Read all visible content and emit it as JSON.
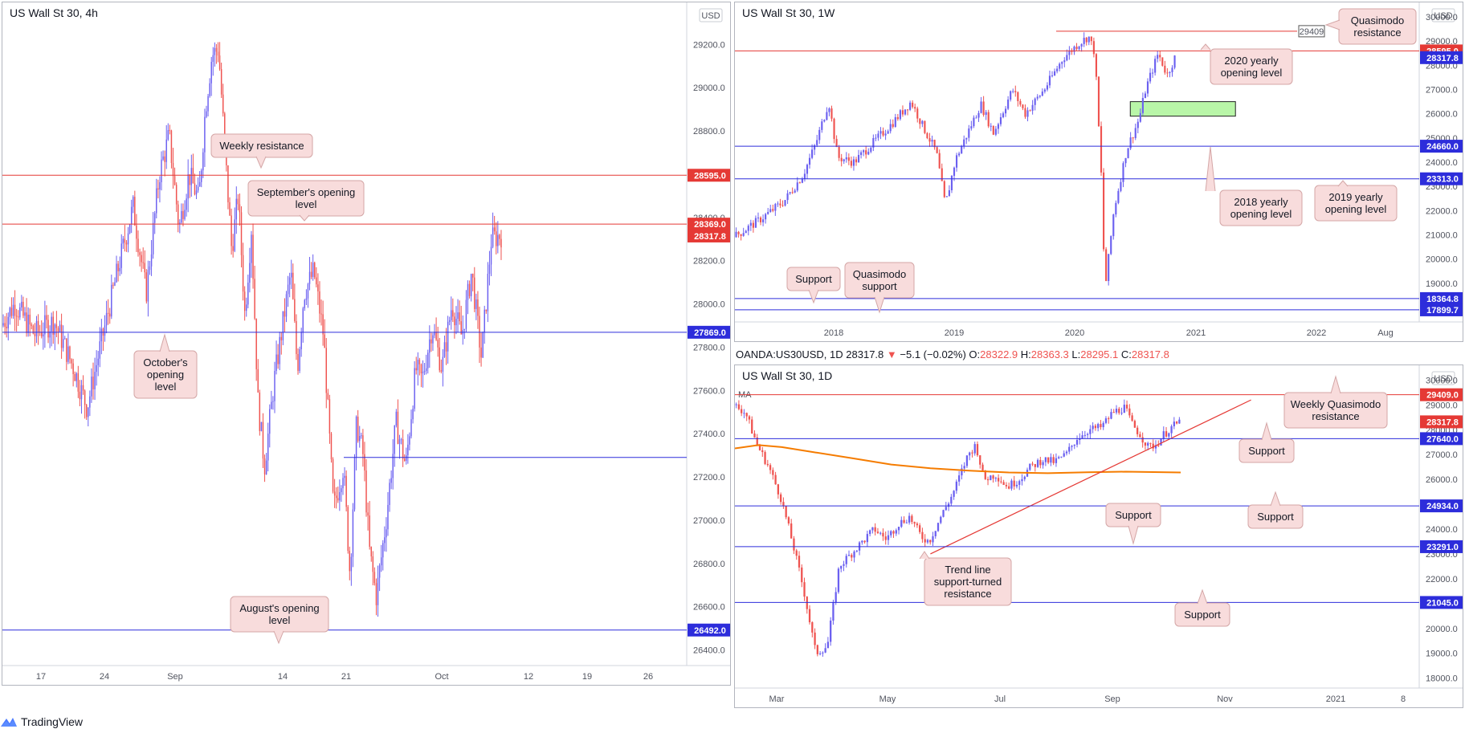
{
  "colors": {
    "bull": "#6b60f0",
    "bear": "#ef5350",
    "red_line": "#e53935",
    "blue_line": "#2d2ddb",
    "ma": "#f57c00",
    "trend": "#e53935",
    "callout_fill": "#f8dcdc",
    "callout_stroke": "#d4a6a6",
    "green_zone": "#b9f6a8"
  },
  "footer": {
    "brand": "TradingView",
    "logo_icon": "tradingview-logo-icon"
  },
  "ohlc_line": {
    "symbol": "OANDA:US30USD, 1D",
    "last": "28317.8",
    "change": "−5.1 (−0.02%)",
    "o_label": "O:",
    "o": "28322.9",
    "h_label": "H:",
    "h": "28363.3",
    "l_label": "L:",
    "l": "28295.1",
    "c_label": "C:",
    "c": "28317.8"
  },
  "chart_data": [
    {
      "id": "4h",
      "type": "candlestick",
      "title": "US Wall St 30, 4h",
      "currency": "USD",
      "ylim": [
        26350,
        29320
      ],
      "y_ticks": [
        "29200.0",
        "29000.0",
        "28800.0",
        "28600.0",
        "28400.0",
        "28200.0",
        "28000.0",
        "27800.0",
        "27600.0",
        "27400.0",
        "27200.0",
        "27000.0",
        "26800.0",
        "26600.0",
        "26400.0"
      ],
      "x_ticks": [
        "17",
        "24",
        "Sep",
        "14",
        "21",
        "Oct",
        "12",
        "19",
        "26"
      ],
      "levels": [
        {
          "value": 28595.0,
          "label": "28595.0",
          "color": "#e53935"
        },
        {
          "value": 28369.0,
          "label": "28369.0",
          "color": "#e53935"
        },
        {
          "value": 27869.0,
          "label": "27869.0",
          "color": "#2d2ddb"
        },
        {
          "value": 27290.0,
          "label": "",
          "color": "#2d2ddb"
        },
        {
          "value": 26492.0,
          "label": "26492.0",
          "color": "#2d2ddb"
        }
      ],
      "price_tags": [
        {
          "value": 28317.8,
          "label": "28317.8",
          "color": "#e53935"
        }
      ],
      "annotations": [
        {
          "text": [
            "Weekly resistance"
          ]
        },
        {
          "text": [
            "September's opening",
            "level"
          ]
        },
        {
          "text": [
            "October's",
            "opening",
            "level"
          ]
        },
        {
          "text": [
            "August's opening",
            "level"
          ]
        }
      ],
      "series_path": [
        [
          0,
          27900
        ],
        [
          4,
          28000
        ],
        [
          10,
          27860
        ],
        [
          16,
          27920
        ],
        [
          22,
          27700
        ],
        [
          26,
          27520
        ],
        [
          30,
          27800
        ],
        [
          36,
          28200
        ],
        [
          40,
          28450
        ],
        [
          44,
          28050
        ],
        [
          48,
          28600
        ],
        [
          51,
          28780
        ],
        [
          54,
          28350
        ],
        [
          57,
          28600
        ],
        [
          60,
          28480
        ],
        [
          62,
          28900
        ],
        [
          64,
          29150
        ],
        [
          66,
          29180
        ],
        [
          68,
          28700
        ],
        [
          70,
          28250
        ],
        [
          72,
          28500
        ],
        [
          74,
          27950
        ],
        [
          76,
          28350
        ],
        [
          78,
          27550
        ],
        [
          80,
          27250
        ],
        [
          83,
          27650
        ],
        [
          86,
          27950
        ],
        [
          88,
          28150
        ],
        [
          90,
          27700
        ],
        [
          92,
          28050
        ],
        [
          95,
          28150
        ],
        [
          98,
          27850
        ],
        [
          101,
          27050
        ],
        [
          104,
          27250
        ],
        [
          106,
          26750
        ],
        [
          108,
          27450
        ],
        [
          110,
          27300
        ],
        [
          112,
          26850
        ],
        [
          114,
          26650
        ],
        [
          117,
          27000
        ],
        [
          120,
          27450
        ],
        [
          123,
          27250
        ],
        [
          126,
          27700
        ],
        [
          128,
          27650
        ],
        [
          131,
          27900
        ],
        [
          134,
          27700
        ],
        [
          137,
          28000
        ],
        [
          140,
          27850
        ],
        [
          143,
          28150
        ],
        [
          146,
          27750
        ],
        [
          149,
          28300
        ],
        [
          152,
          28320
        ]
      ]
    },
    {
      "id": "1w",
      "type": "candlestick",
      "title": "US Wall St 30, 1W",
      "currency": "USD",
      "ylim": [
        17400,
        30400
      ],
      "y_ticks": [
        "30000.0",
        "29000.0",
        "28000.0",
        "27000.0",
        "26000.0",
        "25000.0",
        "24000.0",
        "23000.0",
        "22000.0",
        "21000.0",
        "20000.0",
        "19000.0"
      ],
      "x_ticks": [
        "2018",
        "2019",
        "2020",
        "2021",
        "2022",
        "Aug"
      ],
      "x_domain": [
        2017.3,
        2022.7
      ],
      "levels": [
        {
          "value": 29409,
          "label": "",
          "color": "#e53935"
        },
        {
          "value": 28595.0,
          "label": "28595.0",
          "color": "#e53935"
        },
        {
          "value": 24660.0,
          "label": "24660.0",
          "color": "#2d2ddb"
        },
        {
          "value": 23313.0,
          "label": "23313.0",
          "color": "#2d2ddb"
        },
        {
          "value": 18364.8,
          "label": "18364.8",
          "color": "#2d2ddb"
        },
        {
          "value": 17899.7,
          "label": "17899.7",
          "color": "#2d2ddb"
        }
      ],
      "price_tags": [
        {
          "value": 28317.8,
          "label": "28317.8",
          "color": "#2d2ddb"
        }
      ],
      "small_tag": "29409",
      "zone": {
        "x0": 2020.42,
        "x1": 2021.25,
        "y0": 25900,
        "y1": 26500
      },
      "annotations": [
        {
          "text": [
            "Quasimodo",
            "resistance"
          ]
        },
        {
          "text": [
            "2020 yearly",
            "opening level"
          ]
        },
        {
          "text": [
            "2018 yearly",
            "opening level"
          ]
        },
        {
          "text": [
            "2019 yearly",
            "opening level"
          ]
        },
        {
          "text": [
            "Support"
          ]
        },
        {
          "text": [
            "Quasimodo",
            "support"
          ]
        }
      ],
      "series_path": [
        [
          2017.3,
          20900
        ],
        [
          2017.5,
          21600
        ],
        [
          2017.7,
          22400
        ],
        [
          2017.85,
          23500
        ],
        [
          2017.95,
          24800
        ],
        [
          2018.05,
          26500
        ],
        [
          2018.12,
          24200
        ],
        [
          2018.25,
          24000
        ],
        [
          2018.4,
          24800
        ],
        [
          2018.55,
          25600
        ],
        [
          2018.7,
          26500
        ],
        [
          2018.8,
          25400
        ],
        [
          2018.9,
          24400
        ],
        [
          2018.97,
          22200
        ],
        [
          2019.05,
          24100
        ],
        [
          2019.25,
          26400
        ],
        [
          2019.35,
          25200
        ],
        [
          2019.5,
          27000
        ],
        [
          2019.6,
          26000
        ],
        [
          2019.75,
          27000
        ],
        [
          2019.9,
          28300
        ],
        [
          2020.0,
          28800
        ],
        [
          2020.1,
          29200
        ],
        [
          2020.15,
          28500
        ],
        [
          2020.2,
          23500
        ],
        [
          2020.23,
          18700
        ],
        [
          2020.3,
          22000
        ],
        [
          2020.4,
          24500
        ],
        [
          2020.5,
          25800
        ],
        [
          2020.55,
          27000
        ],
        [
          2020.65,
          28500
        ],
        [
          2020.72,
          27600
        ],
        [
          2020.78,
          28300
        ]
      ]
    },
    {
      "id": "1d",
      "type": "candlestick",
      "title": "US Wall St 30, 1D",
      "currency": "USD",
      "ylim": [
        17600,
        30400
      ],
      "y_ticks": [
        "30000.0",
        "29000.0",
        "28000.0",
        "27000.0",
        "26000.0",
        "25000.0",
        "24000.0",
        "23000.0",
        "22000.0",
        "21000.0",
        "20000.0",
        "19000.0",
        "18000.0"
      ],
      "x_ticks": [
        "Mar",
        "May",
        "Jul",
        "Sep",
        "Nov",
        "2021",
        "8"
      ],
      "levels": [
        {
          "value": 29409.0,
          "label": "29409.0",
          "color": "#e53935"
        },
        {
          "value": 27640.0,
          "label": "27640.0",
          "color": "#2d2ddb"
        },
        {
          "value": 24934.0,
          "label": "24934.0",
          "color": "#2d2ddb"
        },
        {
          "value": 23291.0,
          "label": "23291.0",
          "color": "#2d2ddb"
        },
        {
          "value": 21045.0,
          "label": "21045.0",
          "color": "#2d2ddb"
        }
      ],
      "price_tags": [
        {
          "value": 28317.8,
          "label": "28317.8",
          "color": "#e53935"
        }
      ],
      "ma_label": "MA",
      "annotations": [
        {
          "text": [
            "Weekly Quasimodo",
            "resistance"
          ]
        },
        {
          "text": [
            "Support"
          ]
        },
        {
          "text": [
            "Support"
          ]
        },
        {
          "text": [
            "Support"
          ]
        },
        {
          "text": [
            "Trend line",
            "support-turned",
            "resistance"
          ]
        },
        {
          "text": [
            "Support"
          ]
        }
      ],
      "series_path": [
        [
          0,
          29000
        ],
        [
          3,
          28700
        ],
        [
          6,
          27400
        ],
        [
          9,
          26500
        ],
        [
          12,
          25300
        ],
        [
          15,
          23500
        ],
        [
          18,
          21500
        ],
        [
          21,
          19000
        ],
        [
          24,
          19300
        ],
        [
          27,
          22500
        ],
        [
          30,
          23000
        ],
        [
          33,
          23500
        ],
        [
          36,
          24000
        ],
        [
          39,
          23600
        ],
        [
          42,
          24200
        ],
        [
          45,
          24500
        ],
        [
          48,
          23700
        ],
        [
          50,
          23500
        ],
        [
          53,
          24500
        ],
        [
          56,
          25400
        ],
        [
          60,
          27000
        ],
        [
          62,
          27400
        ],
        [
          64,
          26000
        ],
        [
          67,
          26200
        ],
        [
          70,
          25700
        ],
        [
          73,
          26000
        ],
        [
          76,
          26500
        ],
        [
          79,
          26800
        ],
        [
          82,
          26700
        ],
        [
          85,
          27000
        ],
        [
          88,
          27700
        ],
        [
          91,
          28000
        ],
        [
          94,
          28100
        ],
        [
          97,
          28700
        ],
        [
          100,
          28900
        ],
        [
          102,
          28200
        ],
        [
          104,
          27800
        ],
        [
          106,
          27300
        ],
        [
          108,
          27400
        ],
        [
          110,
          27800
        ],
        [
          112,
          28100
        ],
        [
          114,
          28300
        ]
      ],
      "ma_path": [
        [
          0,
          27250
        ],
        [
          6,
          27380
        ],
        [
          12,
          27300
        ],
        [
          20,
          27100
        ],
        [
          30,
          26850
        ],
        [
          40,
          26600
        ],
        [
          50,
          26450
        ],
        [
          60,
          26350
        ],
        [
          70,
          26280
        ],
        [
          80,
          26250
        ],
        [
          90,
          26290
        ],
        [
          100,
          26310
        ],
        [
          114,
          26280
        ]
      ],
      "trendline": [
        [
          50,
          23000
        ],
        [
          132,
          29200
        ]
      ]
    }
  ]
}
